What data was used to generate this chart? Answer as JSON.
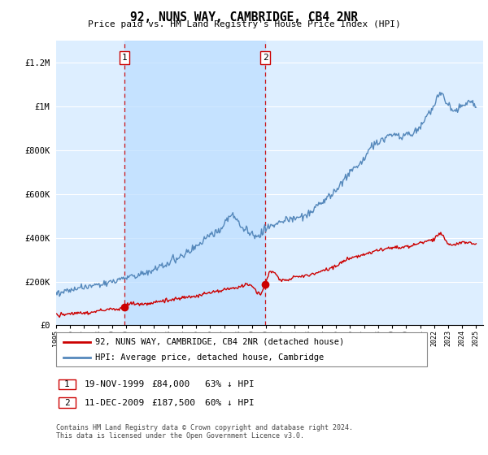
{
  "title": "92, NUNS WAY, CAMBRIDGE, CB4 2NR",
  "subtitle": "Price paid vs. HM Land Registry's House Price Index (HPI)",
  "footnote": "Contains HM Land Registry data © Crown copyright and database right 2024.\nThis data is licensed under the Open Government Licence v3.0.",
  "legend_line1": "92, NUNS WAY, CAMBRIDGE, CB4 2NR (detached house)",
  "legend_line2": "HPI: Average price, detached house, Cambridge",
  "transaction1_label": "1",
  "transaction1_date": "19-NOV-1999",
  "transaction1_price": "£84,000",
  "transaction1_hpi": "63% ↓ HPI",
  "transaction1_x": 1999.89,
  "transaction1_y": 84000,
  "transaction2_label": "2",
  "transaction2_date": "11-DEC-2009",
  "transaction2_price": "£187,500",
  "transaction2_hpi": "60% ↓ HPI",
  "transaction2_x": 2009.95,
  "transaction2_y": 187500,
  "vline1_x": 1999.89,
  "vline2_x": 2009.95,
  "ylim": [
    0,
    1300000
  ],
  "xlim_left": 1995.0,
  "xlim_right": 2025.5,
  "background_color": "#ffffff",
  "plot_bg_color": "#ddeeff",
  "shade_color": "#bbddff",
  "hpi_line_color": "#5588bb",
  "sale_line_color": "#cc0000",
  "vline_color": "#cc0000",
  "grid_color": "#ffffff",
  "marker_color": "#cc0000",
  "label_box_color": "#cc0000",
  "hpi_anchor_years": [
    1995,
    1996,
    1997,
    1998,
    1999,
    2000,
    2001,
    2002,
    2003,
    2004,
    2005,
    2006,
    2007,
    2007.5,
    2008,
    2009,
    2009.5,
    2010,
    2011,
    2012,
    2013,
    2014,
    2015,
    2016,
    2017,
    2017.5,
    2018,
    2019,
    2020,
    2020.5,
    2021,
    2021.5,
    2022,
    2022.5,
    2023,
    2023.5,
    2024,
    2024.5,
    2025
  ],
  "hpi_anchor_vals": [
    148000,
    160000,
    173000,
    185000,
    200000,
    220000,
    235000,
    255000,
    285000,
    320000,
    360000,
    410000,
    460000,
    510000,
    470000,
    420000,
    415000,
    440000,
    470000,
    490000,
    510000,
    560000,
    620000,
    700000,
    760000,
    810000,
    840000,
    870000,
    870000,
    880000,
    910000,
    960000,
    1000000,
    1060000,
    1010000,
    980000,
    1000000,
    1020000,
    1010000
  ],
  "sale_anchor_years": [
    1995,
    1996,
    1997,
    1998,
    1999,
    1999.89,
    2000,
    2001,
    2002,
    2003,
    2004,
    2005,
    2006,
    2007,
    2008,
    2009,
    2009.95,
    2010,
    2011,
    2012,
    2013,
    2014,
    2015,
    2016,
    2017,
    2018,
    2019,
    2020,
    2021,
    2022,
    2022.5,
    2023,
    2023.5,
    2024,
    2024.5,
    2025
  ],
  "sale_anchor_vals": [
    48000,
    52000,
    57000,
    65000,
    75000,
    84000,
    90000,
    97000,
    105000,
    115000,
    125000,
    136000,
    148000,
    165000,
    175000,
    178000,
    187500,
    200000,
    210000,
    220000,
    228000,
    250000,
    272000,
    305000,
    325000,
    345000,
    355000,
    358000,
    375000,
    400000,
    415000,
    375000,
    370000,
    380000,
    375000,
    370000
  ]
}
